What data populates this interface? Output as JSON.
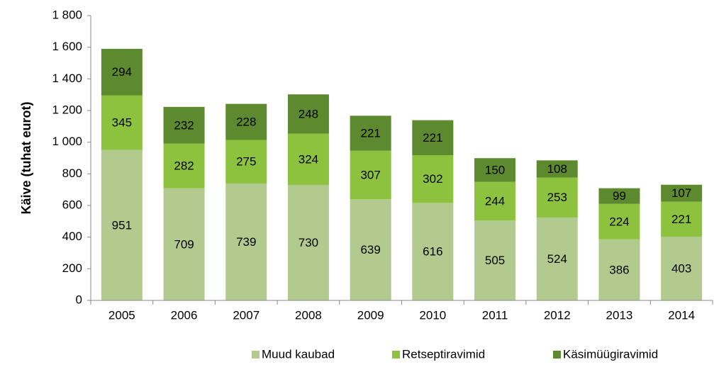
{
  "chart_data": {
    "type": "stacked-bar",
    "y_label": "Käive (tuhat eurot)",
    "categories": [
      "2005",
      "2006",
      "2007",
      "2008",
      "2009",
      "2010",
      "2011",
      "2012",
      "2013",
      "2014"
    ],
    "series": [
      {
        "name": "Muud kaubad",
        "color": "#b3ca8e",
        "values": [
          951,
          709,
          739,
          730,
          639,
          616,
          505,
          524,
          386,
          403
        ]
      },
      {
        "name": "Retseptiravimid",
        "color": "#8dc23f",
        "values": [
          345,
          282,
          275,
          324,
          307,
          302,
          244,
          253,
          224,
          221
        ]
      },
      {
        "name": "Käsimüügiravimid",
        "color": "#5d8a2e",
        "values": [
          294,
          232,
          228,
          248,
          221,
          221,
          150,
          108,
          99,
          107
        ]
      }
    ],
    "ylim": [
      0,
      1800
    ],
    "yticks": [
      0,
      200,
      400,
      600,
      800,
      {
        "value": 1000,
        "label": "1 000"
      },
      {
        "value": 1200,
        "label": "1 200"
      },
      {
        "value": 1400,
        "label": "1 400"
      },
      {
        "value": 1600,
        "label": "1 600"
      },
      {
        "value": 1800,
        "label": "1 800"
      }
    ],
    "grid": false,
    "legend": "bottom"
  }
}
